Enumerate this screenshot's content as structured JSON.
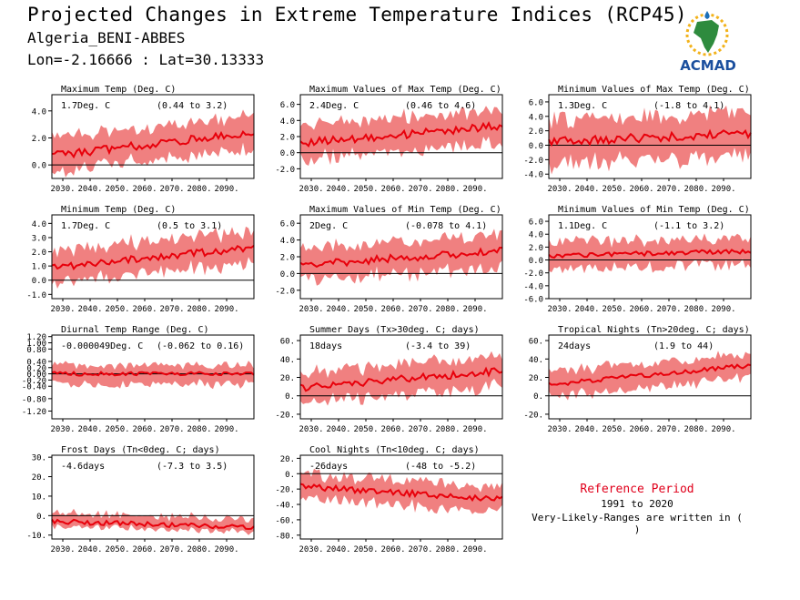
{
  "header": {
    "title": "Projected Changes in Extreme Temperature Indices (RCP45)",
    "location": "Algeria_BENI-ABBES",
    "coords": "Lon=-2.16666 : Lat=30.13333"
  },
  "logo": {
    "text": "ACMAD"
  },
  "reference": {
    "title": "Reference Period",
    "years": "1991 to 2020",
    "note": "Very-Likely-Ranges are written in ( )"
  },
  "colors": {
    "band": "#f08080",
    "line": "#e8000b",
    "zero": "#000000"
  },
  "chart_data": [
    {
      "type": "line",
      "title": "Maximum Temp (Deg. C)",
      "value_label": "1.7Deg. C",
      "range_label": "(0.44 to 3.2)",
      "x_ticks": [
        "2030.",
        "2040.",
        "2050.",
        "2060.",
        "2070.",
        "2080.",
        "2090."
      ],
      "y_ticks": [
        "0.0",
        "2.0",
        "4.0"
      ],
      "y_tick_values": [
        0,
        2,
        4
      ],
      "ylim": [
        -1,
        5.2
      ],
      "series": [
        {
          "x_range": [
            2026,
            2100
          ],
          "start": 0.7,
          "end": 2.4,
          "noise": 0.3,
          "band_low": 1.3,
          "band_high": 1.3
        }
      ]
    },
    {
      "type": "line",
      "title": "Maximum Values of Max Temp (Deg. C)",
      "value_label": "2.4Deg. C",
      "range_label": "(0.46 to 4.6)",
      "x_ticks": [
        "2030.",
        "2040.",
        "2050.",
        "2060.",
        "2070.",
        "2080.",
        "2090."
      ],
      "y_ticks": [
        "-2.0",
        "0.0",
        "2.0",
        "4.0",
        "6.0"
      ],
      "y_tick_values": [
        -2,
        0,
        2,
        4,
        6
      ],
      "ylim": [
        -3.2,
        7.2
      ],
      "series": [
        {
          "x_range": [
            2026,
            2100
          ],
          "start": 1.2,
          "end": 3.3,
          "noise": 0.5,
          "band_low": 2.2,
          "band_high": 2.2
        }
      ]
    },
    {
      "type": "line",
      "title": "Minimum Values of Max Temp (Deg. C)",
      "value_label": "1.3Deg. C",
      "range_label": "(-1.8 to 4.1)",
      "x_ticks": [
        "2030.",
        "2040.",
        "2050.",
        "2060.",
        "2070.",
        "2080.",
        "2090."
      ],
      "y_ticks": [
        "-4.0",
        "-2.0",
        "0.0",
        "2.0",
        "4.0",
        "6.0"
      ],
      "y_tick_values": [
        -4,
        -2,
        0,
        2,
        4,
        6
      ],
      "ylim": [
        -4.6,
        7.0
      ],
      "series": [
        {
          "x_range": [
            2026,
            2100
          ],
          "start": 0.5,
          "end": 1.6,
          "noise": 0.6,
          "band_low": 3.2,
          "band_high": 3.0
        }
      ]
    },
    {
      "type": "line",
      "title": "Minimum Temp (Deg. C)",
      "value_label": "1.7Deg. C",
      "range_label": "(0.5 to 3.1)",
      "x_ticks": [
        "2030.",
        "2040.",
        "2050.",
        "2060.",
        "2070.",
        "2080.",
        "2090."
      ],
      "y_ticks": [
        "-1.0",
        "0.0",
        "1.0",
        "2.0",
        "3.0",
        "4.0"
      ],
      "y_tick_values": [
        -1,
        0,
        1,
        2,
        3,
        4
      ],
      "ylim": [
        -1.3,
        4.6
      ],
      "series": [
        {
          "x_range": [
            2026,
            2100
          ],
          "start": 0.9,
          "end": 2.3,
          "noise": 0.25,
          "band_low": 1.1,
          "band_high": 1.2
        }
      ]
    },
    {
      "type": "line",
      "title": "Maximum Values of Min Temp (Deg. C)",
      "value_label": "2Deg. C",
      "range_label": "(-0.078 to 4.1)",
      "x_ticks": [
        "2030.",
        "2040.",
        "2050.",
        "2060.",
        "2070.",
        "2080.",
        "2090."
      ],
      "y_ticks": [
        "-2.0",
        "0.0",
        "2.0",
        "4.0",
        "6.0"
      ],
      "y_tick_values": [
        -2,
        0,
        2,
        4,
        6
      ],
      "ylim": [
        -3.0,
        7.0
      ],
      "series": [
        {
          "x_range": [
            2026,
            2100
          ],
          "start": 1.0,
          "end": 2.7,
          "noise": 0.45,
          "band_low": 2.0,
          "band_high": 2.0
        }
      ]
    },
    {
      "type": "line",
      "title": "Minimum Values of Min Temp (Deg. C)",
      "value_label": "1.1Deg. C",
      "range_label": "(-1.1 to 3.2)",
      "x_ticks": [
        "2030.",
        "2040.",
        "2050.",
        "2060.",
        "2070.",
        "2080.",
        "2090."
      ],
      "y_ticks": [
        "-6.0",
        "-4.0",
        "-2.0",
        "0.0",
        "2.0",
        "4.0",
        "6.0"
      ],
      "y_tick_values": [
        -6,
        -4,
        -2,
        0,
        2,
        4,
        6
      ],
      "ylim": [
        -6.0,
        7.0
      ],
      "series": [
        {
          "x_range": [
            2026,
            2100
          ],
          "start": 0.6,
          "end": 1.4,
          "noise": 0.35,
          "band_low": 2.2,
          "band_high": 2.2
        }
      ]
    },
    {
      "type": "line",
      "title": "Diurnal Temp Range (Deg. C)",
      "value_label": "-0.000049Deg. C",
      "range_label": "(-0.062 to 0.16)",
      "x_ticks": [
        "2030.",
        "2040.",
        "2050.",
        "2060.",
        "2070.",
        "2080.",
        "2090."
      ],
      "y_ticks": [
        "-1.20",
        "-0.80",
        "-0.40",
        "-0.20",
        "0.00",
        "0.20",
        "0.40",
        "0.80",
        "1.00",
        "1.20"
      ],
      "y_tick_values": [
        -1.2,
        -0.8,
        -0.4,
        -0.2,
        0,
        0.2,
        0.4,
        0.8,
        1.0,
        1.2
      ],
      "ylim": [
        -1.45,
        1.25
      ],
      "series": [
        {
          "x_range": [
            2026,
            2100
          ],
          "start": 0.0,
          "end": 0.0,
          "noise": 0.06,
          "band_low": 0.35,
          "band_high": 0.3
        }
      ]
    },
    {
      "type": "line",
      "title": "Summer Days (Tx>30deg. C; days)",
      "value_label": "18days",
      "range_label": "(-3.4 to 39)",
      "x_ticks": [
        "2030.",
        "2040.",
        "2050.",
        "2060.",
        "2070.",
        "2080.",
        "2090."
      ],
      "y_ticks": [
        "-20.",
        "0.",
        "20.",
        "40.",
        "60."
      ],
      "y_tick_values": [
        -20,
        0,
        20,
        40,
        60
      ],
      "ylim": [
        -25,
        66
      ],
      "series": [
        {
          "x_range": [
            2026,
            2100
          ],
          "start": 9,
          "end": 27,
          "noise": 4,
          "band_low": 17,
          "band_high": 17
        }
      ]
    },
    {
      "type": "line",
      "title": "Tropical Nights (Tn>20deg. C; days)",
      "value_label": "24days",
      "range_label": "(1.9 to 44)",
      "x_ticks": [
        "2030.",
        "2040.",
        "2050.",
        "2060.",
        "2070.",
        "2080.",
        "2090."
      ],
      "y_ticks": [
        "-20.",
        "0.",
        "20.",
        "40.",
        "60."
      ],
      "y_tick_values": [
        -20,
        0,
        20,
        40,
        60
      ],
      "ylim": [
        -25,
        66
      ],
      "series": [
        {
          "x_range": [
            2026,
            2100
          ],
          "start": 12,
          "end": 33,
          "noise": 2.5,
          "band_low": 14,
          "band_high": 14
        }
      ]
    },
    {
      "type": "line",
      "title": "Frost Days (Tn<0deg. C; days)",
      "value_label": "-4.6days",
      "range_label": "(-7.3 to 3.5)",
      "x_ticks": [
        "2030.",
        "2040.",
        "2050.",
        "2060.",
        "2070.",
        "2080.",
        "2090."
      ],
      "y_ticks": [
        "-10.",
        "0.",
        "10.",
        "20.",
        "30."
      ],
      "y_tick_values": [
        -10,
        0,
        10,
        20,
        30
      ],
      "ylim": [
        -12,
        31
      ],
      "series": [
        {
          "x_range": [
            2026,
            2100
          ],
          "start": -3,
          "end": -6,
          "noise": 1.2,
          "band_low": 2.5,
          "band_high": 4.5
        }
      ]
    },
    {
      "type": "line",
      "title": "Cool Nights (Tn<10deg. C; days)",
      "value_label": "-26days",
      "range_label": "(-48 to -5.2)",
      "x_ticks": [
        "2030.",
        "2040.",
        "2050.",
        "2060.",
        "2070.",
        "2080.",
        "2090."
      ],
      "y_ticks": [
        "-80.",
        "-60.",
        "-40.",
        "-20.",
        "0.",
        "20."
      ],
      "y_tick_values": [
        -80,
        -60,
        -40,
        -20,
        0,
        20
      ],
      "ylim": [
        -85,
        24
      ],
      "series": [
        {
          "x_range": [
            2026,
            2100
          ],
          "start": -17,
          "end": -33,
          "noise": 4,
          "band_low": 17,
          "band_high": 17
        }
      ]
    }
  ]
}
